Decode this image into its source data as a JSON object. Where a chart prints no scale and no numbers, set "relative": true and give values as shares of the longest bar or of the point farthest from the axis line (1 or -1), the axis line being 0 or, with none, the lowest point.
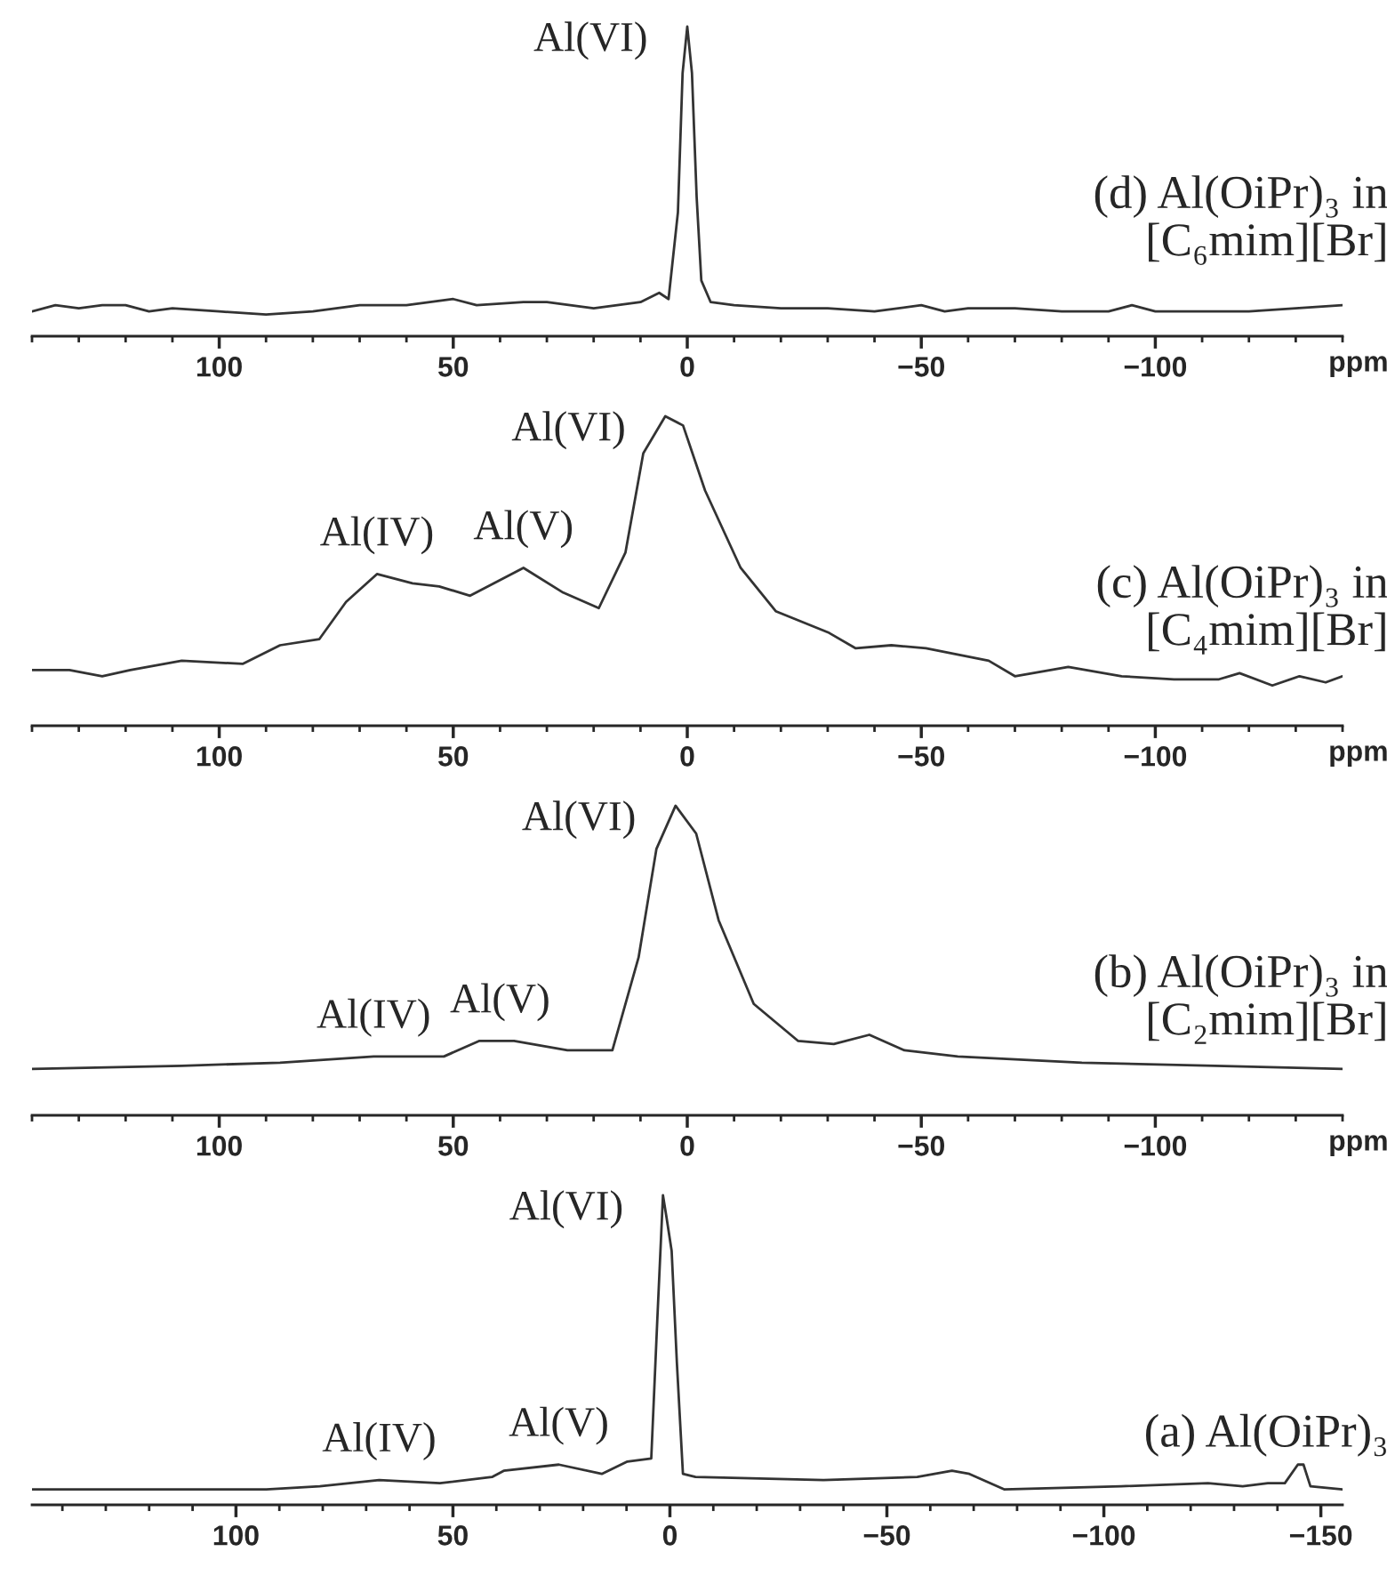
{
  "chart_data": [
    {
      "type": "line",
      "title": "(d) Al(OiPr)₃ in\n[C₆mim][Br]",
      "xlabel": "ppm",
      "relative": true,
      "tick_labels": "x",
      "xlim": [
        140,
        -140
      ],
      "xticks": [
        100,
        50,
        0,
        {
          "value": -50,
          "label": "−50"
        },
        {
          "value": -100,
          "label": "−100"
        }
      ],
      "series": [
        {
          "color": "#333333",
          "x": [
            140,
            135,
            130,
            125,
            120,
            115,
            110,
            100,
            90,
            80,
            75,
            70,
            60,
            50,
            45,
            35,
            30,
            25,
            20,
            15,
            10,
            6,
            4,
            2,
            1,
            0,
            -1,
            -2,
            -3,
            -5,
            -10,
            -20,
            -30,
            -40,
            -50,
            -55,
            -60,
            -70,
            -80,
            -90,
            -95,
            -100,
            -110,
            -120,
            -130,
            -140
          ],
          "values": [
            0.08,
            0.1,
            0.09,
            0.1,
            0.1,
            0.08,
            0.09,
            0.08,
            0.07,
            0.08,
            0.09,
            0.1,
            0.1,
            0.12,
            0.1,
            0.11,
            0.11,
            0.1,
            0.09,
            0.1,
            0.11,
            0.14,
            0.12,
            0.4,
            0.85,
            1.0,
            0.85,
            0.45,
            0.18,
            0.11,
            0.1,
            0.09,
            0.09,
            0.08,
            0.1,
            0.08,
            0.09,
            0.09,
            0.08,
            0.08,
            0.1,
            0.08,
            0.08,
            0.08,
            0.09,
            0.1
          ]
        }
      ],
      "annotations": [
        {
          "text": "Al(VI)",
          "x": 0,
          "y": 1.0
        }
      ]
    },
    {
      "type": "line",
      "title": "(c) Al(OiPr)₃ in\n[C₄mim][Br]",
      "xlabel": "ppm",
      "relative": true,
      "tick_labels": "x",
      "xlim": [
        140,
        -140
      ],
      "xticks": [
        100,
        50,
        0,
        {
          "value": -50,
          "label": "−50"
        },
        {
          "value": -100,
          "label": "−100"
        }
      ],
      "series": [
        {
          "color": "#333333",
          "x": [
            140,
            132,
            125,
            119,
            108,
            95,
            87,
            78.6,
            72.9,
            66.3,
            58.7,
            53,
            46.4,
            35,
            26.5,
            18.9,
            13.2,
            9.4,
            4.7,
            0.9,
            -3.8,
            -11.4,
            -18.9,
            -30.3,
            -36,
            -43.6,
            -51,
            -64.4,
            -70,
            -81.4,
            -92.8,
            -104,
            -113.6,
            -118,
            -125,
            -130.8,
            -136.4,
            -140
          ],
          "values": [
            0.18,
            0.18,
            0.16,
            0.18,
            0.21,
            0.2,
            0.26,
            0.28,
            0.4,
            0.49,
            0.46,
            0.45,
            0.42,
            0.51,
            0.43,
            0.38,
            0.56,
            0.88,
            1.0,
            0.97,
            0.76,
            0.51,
            0.37,
            0.3,
            0.25,
            0.26,
            0.25,
            0.21,
            0.16,
            0.19,
            0.16,
            0.15,
            0.15,
            0.17,
            0.13,
            0.16,
            0.14,
            0.16
          ]
        }
      ],
      "annotations": [
        {
          "text": "Al(IV)",
          "x": 66.3,
          "y": 0.49
        },
        {
          "text": "Al(V)",
          "x": 35,
          "y": 0.51
        },
        {
          "text": "Al(VI)",
          "x": 4.7,
          "y": 1.0
        }
      ]
    },
    {
      "type": "line",
      "title": "(b) Al(OiPr)₃ in\n[C₂mim][Br]",
      "xlabel": "ppm",
      "relative": true,
      "tick_labels": "x",
      "xlim": [
        140,
        -140
      ],
      "xticks": [
        100,
        50,
        0,
        {
          "value": -50,
          "label": "−50"
        },
        {
          "value": -100,
          "label": "−100"
        }
      ],
      "series": [
        {
          "color": "#333333",
          "x": [
            140,
            108,
            87,
            67,
            52,
            44.5,
            37,
            25.6,
            16,
            10.4,
            6.6,
            2.5,
            -1.9,
            -6.7,
            -14.2,
            -23.7,
            -31.3,
            -38.9,
            -46.4,
            -57.8,
            -84.3,
            -112.8,
            -140
          ],
          "values": [
            0.15,
            0.16,
            0.17,
            0.19,
            0.19,
            0.24,
            0.24,
            0.21,
            0.21,
            0.51,
            0.86,
            1.0,
            0.91,
            0.63,
            0.36,
            0.24,
            0.23,
            0.26,
            0.21,
            0.19,
            0.17,
            0.16,
            0.15
          ]
        }
      ],
      "annotations": [
        {
          "text": "Al(IV)",
          "x": 67,
          "y": 0.19
        },
        {
          "text": "Al(V)",
          "x": 40,
          "y": 0.24
        },
        {
          "text": "Al(VI)",
          "x": 2.5,
          "y": 1.0
        }
      ]
    },
    {
      "type": "line",
      "title": "(a) Al(OiPr)₃",
      "relative": true,
      "tick_labels": "x",
      "xlim": [
        147,
        -155
      ],
      "xticks": [
        100,
        50,
        0,
        {
          "value": -50,
          "label": "−50"
        },
        {
          "value": -100,
          "label": "−100"
        },
        {
          "value": -150,
          "label": "−150"
        }
      ],
      "series": [
        {
          "color": "#333333",
          "x": [
            147,
            93,
            80.7,
            67,
            53,
            41,
            38.3,
            25.6,
            15.7,
            9.8,
            4.3,
            2.9,
            1.6,
            0.8,
            -0.4,
            -1.6,
            -3,
            -5.9,
            -35.4,
            -57,
            -65,
            -69,
            -77,
            -104,
            -124,
            -132,
            -137.8,
            -141.7,
            -144.7,
            -146,
            -147.6,
            -155
          ],
          "values": [
            0.05,
            0.05,
            0.06,
            0.08,
            0.07,
            0.09,
            0.11,
            0.13,
            0.1,
            0.14,
            0.15,
            0.6,
            1.0,
            0.93,
            0.82,
            0.46,
            0.1,
            0.09,
            0.08,
            0.09,
            0.11,
            0.1,
            0.05,
            0.06,
            0.07,
            0.06,
            0.07,
            0.07,
            0.13,
            0.13,
            0.06,
            0.05
          ]
        }
      ],
      "annotations": [
        {
          "text": "Al(IV)",
          "x": 67,
          "y": 0.08
        },
        {
          "text": "Al(V)",
          "x": 25.6,
          "y": 0.13
        },
        {
          "text": "Al(VI)",
          "x": 1.6,
          "y": 1.0
        }
      ]
    }
  ]
}
